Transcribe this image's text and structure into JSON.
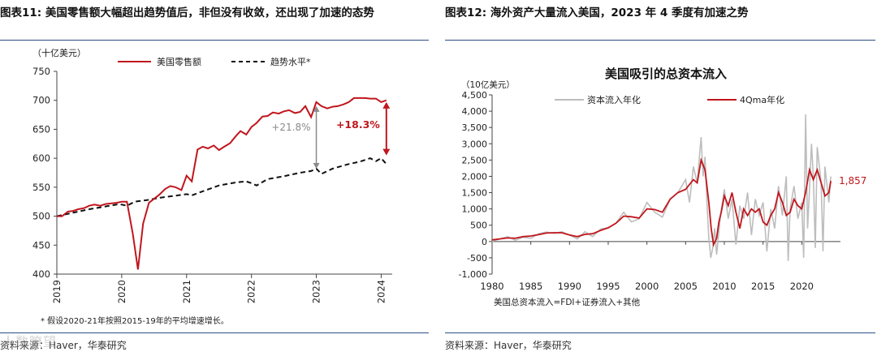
{
  "left": {
    "fig_title": "图表11:  美国零售额大幅超出趋势值后，非但没有收敛，还出现了加速的态势",
    "source": "资料来源：Haver，华泰研究",
    "watermark": "人数瞭望",
    "chart_data": {
      "type": "line",
      "unit_label": "（十亿美元）",
      "ylim": [
        400,
        750
      ],
      "yticks": [
        400,
        450,
        500,
        550,
        600,
        650,
        700,
        750
      ],
      "xlim": [
        2019.0,
        2024.17
      ],
      "xticks": [
        "2019",
        "2020",
        "2021",
        "2022",
        "2023",
        "2024"
      ],
      "legend": [
        "美国零售额",
        "趋势水平*"
      ],
      "footnote": "* 假设2020-21年按照2015-19年的平均增速增长。",
      "annotations": {
        "gray_label": "+21.8%",
        "red_label": "+18.3%"
      },
      "colors": {
        "retail": "#c0161d",
        "trend": "#111111",
        "gray_arrow": "#8a8a8a"
      },
      "series": [
        {
          "name": "美国零售额",
          "x": [
            2019.0,
            2019.08,
            2019.17,
            2019.25,
            2019.33,
            2019.42,
            2019.5,
            2019.58,
            2019.67,
            2019.75,
            2019.83,
            2019.92,
            2020.0,
            2020.08,
            2020.17,
            2020.25,
            2020.33,
            2020.42,
            2020.5,
            2020.58,
            2020.67,
            2020.75,
            2020.83,
            2020.92,
            2021.0,
            2021.08,
            2021.17,
            2021.25,
            2021.33,
            2021.42,
            2021.5,
            2021.58,
            2021.67,
            2021.75,
            2021.83,
            2021.92,
            2022.0,
            2022.08,
            2022.17,
            2022.25,
            2022.33,
            2022.42,
            2022.5,
            2022.58,
            2022.67,
            2022.75,
            2022.83,
            2022.92,
            2023.0,
            2023.08,
            2023.17,
            2023.25,
            2023.33,
            2023.42,
            2023.5,
            2023.58,
            2023.67,
            2023.75,
            2023.83,
            2023.92,
            2024.0,
            2024.08
          ],
          "values": [
            500,
            500,
            508,
            509,
            512,
            514,
            518,
            520,
            518,
            521,
            522,
            523,
            525,
            525,
            470,
            408,
            487,
            523,
            530,
            537,
            547,
            552,
            550,
            545,
            570,
            560,
            615,
            620,
            617,
            622,
            614,
            620,
            626,
            637,
            647,
            641,
            654,
            661,
            672,
            673,
            679,
            677,
            681,
            683,
            678,
            680,
            690,
            671,
            697,
            690,
            686,
            689,
            690,
            693,
            697,
            704,
            704,
            704,
            703,
            703,
            697,
            700
          ]
        },
        {
          "name": "趋势水平*",
          "x": [
            2019.0,
            2019.5,
            2019.92,
            2020.0,
            2020.08,
            2020.2,
            2020.4,
            2020.6,
            2020.8,
            2021.0,
            2021.08,
            2021.3,
            2021.5,
            2021.75,
            2021.92,
            2022.0,
            2022.08,
            2022.25,
            2022.5,
            2022.75,
            2022.92,
            2023.0,
            2023.08,
            2023.25,
            2023.5,
            2023.67,
            2023.83,
            2023.92,
            2024.0,
            2024.08
          ],
          "values": [
            500,
            512,
            520,
            520,
            518,
            525,
            528,
            532,
            535,
            538,
            536,
            545,
            553,
            558,
            560,
            557,
            553,
            564,
            569,
            575,
            578,
            582,
            573,
            582,
            590,
            594,
            600,
            595,
            600,
            590
          ]
        }
      ]
    }
  },
  "right": {
    "fig_title": "图表12:  海外资产大量流入美国，2023 年 4 季度有加速之势",
    "source": "资料来源：Haver，华泰研究",
    "chart_data": {
      "type": "line",
      "title": "美国吸引的总资本流入",
      "unit_label": "（10亿美元）",
      "ylim": [
        -1000,
        4500
      ],
      "yticks": [
        -1000,
        -500,
        0,
        500,
        1000,
        1500,
        2000,
        2500,
        3000,
        3500,
        4000,
        4500
      ],
      "ytick_labels": [
        "-1,000",
        "-500",
        "0",
        "500",
        "1,000",
        "1,500",
        "2,000",
        "2,500",
        "3,000",
        "3,500",
        "4,000",
        "4,500"
      ],
      "xlim": [
        1980,
        2025
      ],
      "xticks": [
        "1980",
        "1985",
        "1990",
        "1995",
        "2000",
        "2005",
        "2010",
        "2015",
        "2020"
      ],
      "legend": [
        "资本流入年化",
        "4Qma年化"
      ],
      "end_label": "1,857",
      "footnote": "美国总资本流入=FDI+证券流入+其他",
      "colors": {
        "annualized": "#bdbdbd",
        "ma": "#c0161d"
      },
      "series": [
        {
          "name": "资本流入年化",
          "x": [
            1980,
            1981,
            1982,
            1983,
            1984,
            1985,
            1986,
            1987,
            1988,
            1989,
            1990,
            1991,
            1992,
            1993,
            1994,
            1995,
            1996,
            1997,
            1998,
            1999,
            2000,
            2001,
            2002,
            2003,
            2004,
            2005,
            2005.5,
            2006,
            2006.5,
            2007,
            2007.25,
            2007.5,
            2007.75,
            2008,
            2008.25,
            2008.5,
            2008.75,
            2009,
            2009.5,
            2010,
            2010.5,
            2011,
            2011.5,
            2012,
            2012.5,
            2013,
            2013.5,
            2014,
            2014.5,
            2015,
            2015.5,
            2016,
            2016.5,
            2017,
            2017.5,
            2018,
            2018.25,
            2018.5,
            2019,
            2019.5,
            2020,
            2020.25,
            2020.5,
            2020.75,
            2021,
            2021.25,
            2021.5,
            2021.75,
            2022,
            2022.5,
            2022.75,
            2023,
            2023.5,
            2023.75
          ],
          "values": [
            0,
            80,
            150,
            40,
            130,
            100,
            240,
            290,
            250,
            300,
            200,
            80,
            300,
            150,
            380,
            420,
            560,
            900,
            600,
            700,
            1200,
            900,
            750,
            1300,
            1500,
            1900,
            1200,
            2300,
            1800,
            3200,
            2000,
            2600,
            1200,
            100,
            -500,
            -200,
            400,
            -400,
            800,
            1600,
            700,
            1300,
            -100,
            1100,
            700,
            1500,
            200,
            1300,
            800,
            1200,
            -300,
            1000,
            400,
            1700,
            800,
            2000,
            -600,
            1000,
            1700,
            700,
            1200,
            -500,
            3900,
            400,
            1600,
            3000,
            2000,
            -200,
            2900,
            1800,
            -300,
            2300,
            1200,
            2000
          ]
        },
        {
          "name": "4Qma年化",
          "x": [
            1980,
            1981,
            1982,
            1983,
            1984,
            1985,
            1986,
            1987,
            1988,
            1989,
            1990,
            1991,
            1992,
            1993,
            1994,
            1995,
            1996,
            1997,
            1998,
            1999,
            2000,
            2001,
            2002,
            2003,
            2004,
            2005,
            2006,
            2006.5,
            2007,
            2007.5,
            2008,
            2008.3,
            2008.6,
            2009,
            2009.3,
            2009.6,
            2010,
            2010.5,
            2011,
            2011.5,
            2012,
            2012.5,
            2013,
            2013.5,
            2014,
            2014.5,
            2015,
            2015.5,
            2016,
            2016.5,
            2017,
            2017.5,
            2018,
            2018.5,
            2019,
            2019.5,
            2020,
            2020.5,
            2021,
            2021.5,
            2022,
            2022.5,
            2023,
            2023.5,
            2023.75
          ],
          "values": [
            50,
            80,
            110,
            100,
            150,
            170,
            210,
            260,
            270,
            270,
            200,
            150,
            220,
            240,
            340,
            420,
            560,
            780,
            760,
            720,
            1000,
            980,
            900,
            1300,
            1500,
            1600,
            1900,
            1800,
            2500,
            2200,
            1200,
            400,
            -100,
            100,
            600,
            900,
            1400,
            1100,
            1500,
            900,
            400,
            1000,
            800,
            1000,
            900,
            1000,
            600,
            500,
            800,
            1000,
            1500,
            1200,
            800,
            900,
            1300,
            1100,
            1000,
            1500,
            2200,
            1900,
            2200,
            1800,
            1400,
            1500,
            1857
          ]
        }
      ]
    }
  }
}
